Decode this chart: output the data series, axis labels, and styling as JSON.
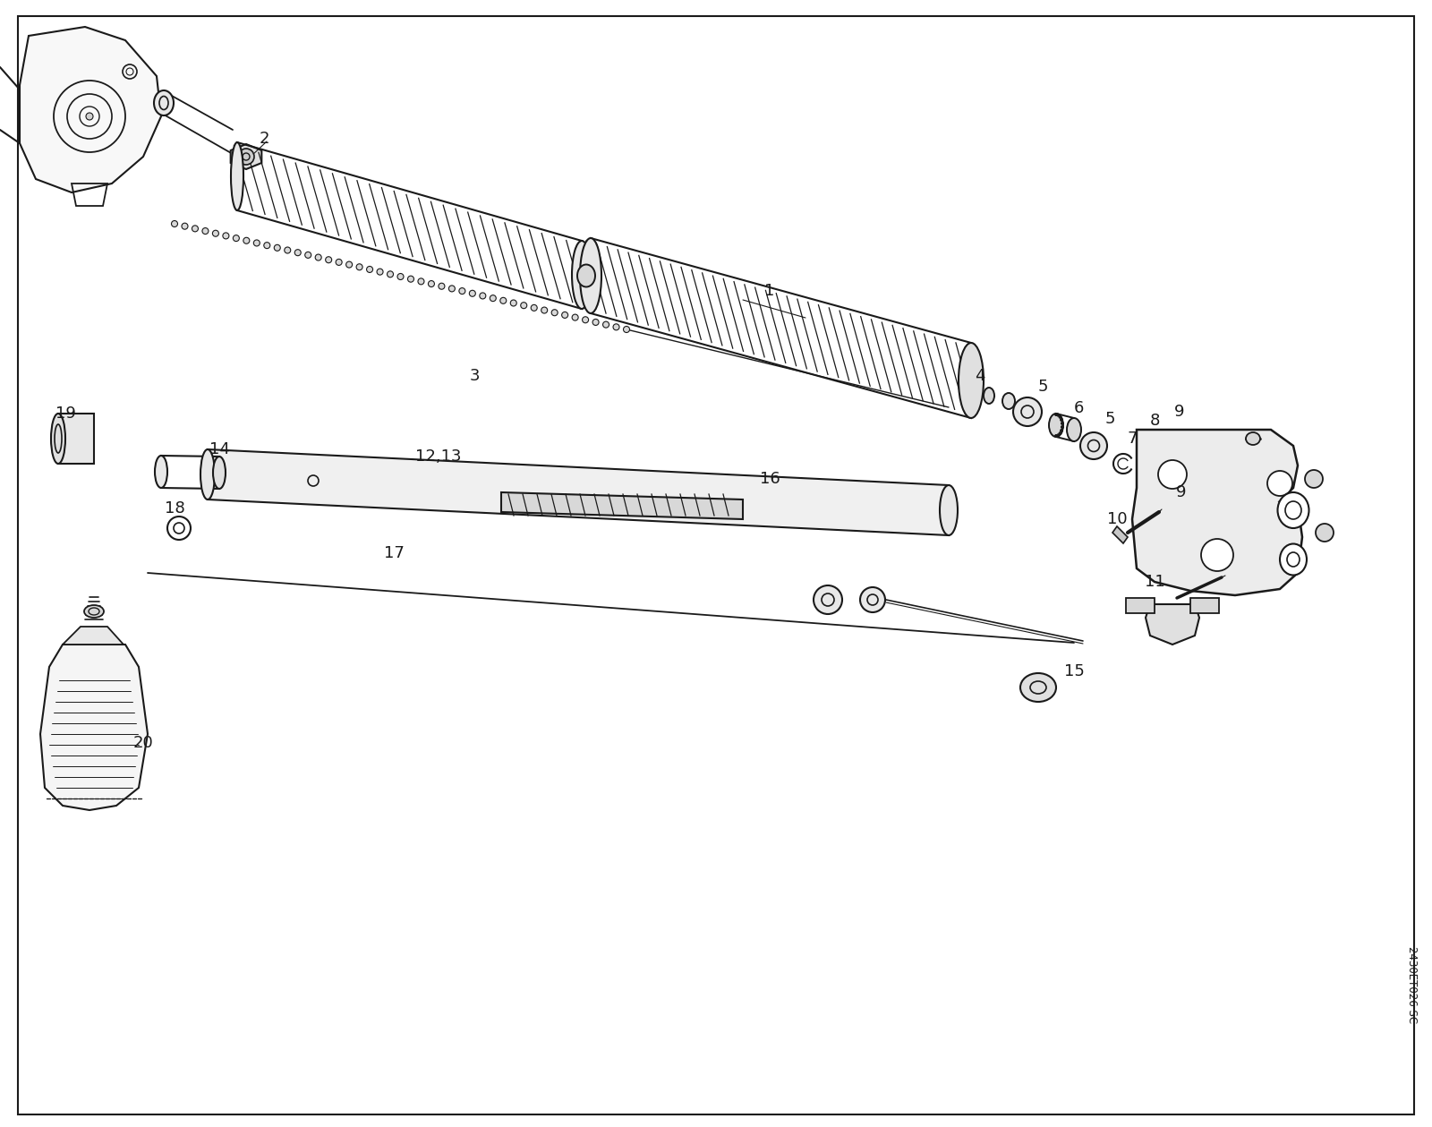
{
  "background_color": "#ffffff",
  "line_color": "#1a1a1a",
  "figsize": [
    16.0,
    12.59
  ],
  "dpi": 100,
  "watermark": "2430ET026 SC"
}
